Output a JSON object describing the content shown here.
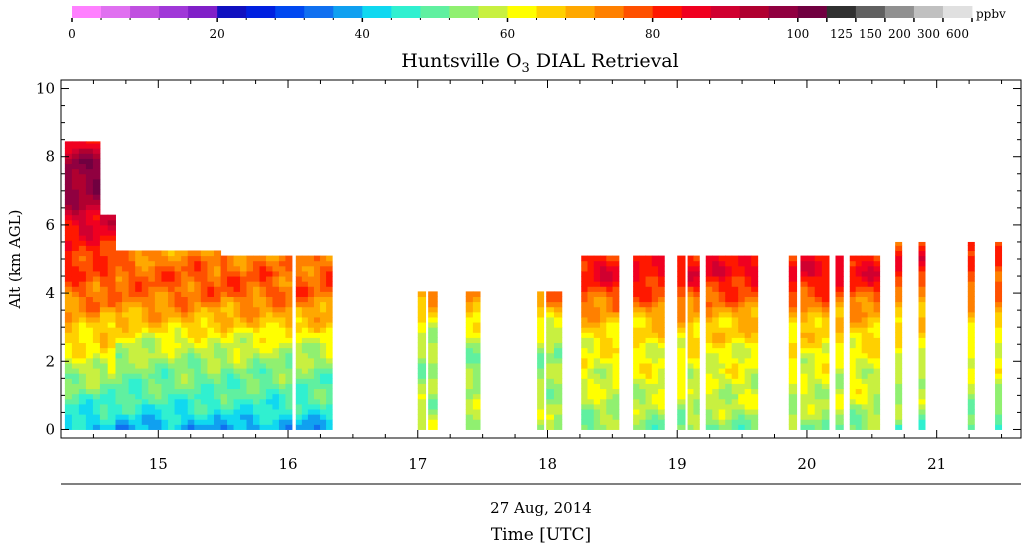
{
  "chart_data": {
    "type": "heatmap",
    "title": "Huntsville O",
    "title_sub": "3",
    "title_suffix": " DIAL Retrieval",
    "ylabel": "Alt (km AGL)",
    "xlabel": "Time [UTC]",
    "date_label": "27 Aug, 2014",
    "xlim": [
      14.25,
      21.65
    ],
    "ylim": [
      -0.25,
      10.25
    ],
    "x_ticks": [
      15,
      16,
      17,
      18,
      19,
      20,
      21
    ],
    "x_tick_labels": [
      "15",
      "16",
      "17",
      "18",
      "19",
      "20",
      "21"
    ],
    "y_ticks": [
      0,
      2,
      4,
      6,
      8,
      10
    ],
    "y_tick_labels": [
      "0",
      "2",
      "4",
      "6",
      "8",
      "10"
    ],
    "colorbar": {
      "unit": "ppbv",
      "colors": [
        "#ff80ff",
        "#e070f0",
        "#c050e0",
        "#a038d8",
        "#8020c8",
        "#1010c0",
        "#0020e0",
        "#0048f0",
        "#1070f0",
        "#10a0f0",
        "#10d8f0",
        "#30f0d0",
        "#60f0a0",
        "#90f070",
        "#c8f040",
        "#ffff00",
        "#ffd000",
        "#ffa800",
        "#ff8000",
        "#ff5000",
        "#ff1800",
        "#f00020",
        "#d00030",
        "#b00030",
        "#900040",
        "#700040",
        "#303030",
        "#606060",
        "#909090",
        "#c0c0c0",
        "#e0e0e0"
      ],
      "tick_labels": [
        "0",
        "20",
        "40",
        "60",
        "80",
        "100",
        "125",
        "150",
        "200",
        "300",
        "600"
      ]
    },
    "segments": [
      {
        "start": 14.28,
        "end": 14.55,
        "top": 8.45,
        "profile": "early"
      },
      {
        "start": 14.55,
        "end": 14.67,
        "top": 6.3,
        "profile": "early"
      },
      {
        "start": 14.67,
        "end": 15.48,
        "top": 5.25,
        "profile": "morning"
      },
      {
        "start": 15.48,
        "end": 16.03,
        "top": 5.1,
        "profile": "morning"
      },
      {
        "start": 16.06,
        "end": 16.34,
        "top": 5.1,
        "profile": "morning"
      },
      {
        "start": 17.0,
        "end": 17.06,
        "top": 4.05,
        "profile": "mid"
      },
      {
        "start": 17.08,
        "end": 17.15,
        "top": 4.05,
        "profile": "mid"
      },
      {
        "start": 17.37,
        "end": 17.48,
        "top": 4.05,
        "profile": "mid"
      },
      {
        "start": 17.92,
        "end": 17.97,
        "top": 4.05,
        "profile": "mid"
      },
      {
        "start": 17.99,
        "end": 18.11,
        "top": 4.05,
        "profile": "mid"
      },
      {
        "start": 18.26,
        "end": 18.55,
        "top": 5.1,
        "profile": "afternoon"
      },
      {
        "start": 18.66,
        "end": 18.9,
        "top": 5.1,
        "profile": "afternoon"
      },
      {
        "start": 19.0,
        "end": 19.06,
        "top": 5.1,
        "profile": "afternoon"
      },
      {
        "start": 19.08,
        "end": 19.17,
        "top": 5.1,
        "profile": "afternoon"
      },
      {
        "start": 19.22,
        "end": 19.62,
        "top": 5.1,
        "profile": "afternoon"
      },
      {
        "start": 19.86,
        "end": 19.92,
        "top": 5.1,
        "profile": "afternoon"
      },
      {
        "start": 19.95,
        "end": 20.17,
        "top": 5.1,
        "profile": "afternoon"
      },
      {
        "start": 20.22,
        "end": 20.28,
        "top": 5.1,
        "profile": "afternoon"
      },
      {
        "start": 20.33,
        "end": 20.56,
        "top": 5.1,
        "profile": "afternoon"
      },
      {
        "start": 20.68,
        "end": 20.73,
        "top": 5.5,
        "profile": "late"
      },
      {
        "start": 20.86,
        "end": 20.91,
        "top": 5.5,
        "profile": "late"
      },
      {
        "start": 21.24,
        "end": 21.29,
        "top": 5.5,
        "profile": "late"
      },
      {
        "start": 21.45,
        "end": 21.5,
        "top": 5.5,
        "profile": "late"
      }
    ],
    "profiles": {
      "early": [
        [
          0,
          40
        ],
        [
          0.6,
          46
        ],
        [
          1.5,
          55
        ],
        [
          2.3,
          62
        ],
        [
          3.0,
          67
        ],
        [
          3.8,
          75
        ],
        [
          5.0,
          80
        ],
        [
          6.2,
          88
        ],
        [
          7.2,
          100
        ],
        [
          8.0,
          95
        ],
        [
          8.45,
          85
        ]
      ],
      "morning": [
        [
          0,
          38
        ],
        [
          0.5,
          45
        ],
        [
          1.2,
          50
        ],
        [
          1.8,
          53
        ],
        [
          2.6,
          60
        ],
        [
          3.2,
          68
        ],
        [
          4.0,
          76
        ],
        [
          4.6,
          77
        ],
        [
          5.25,
          72
        ]
      ],
      "mid": [
        [
          0,
          58
        ],
        [
          1.0,
          56
        ],
        [
          2.0,
          54
        ],
        [
          3.0,
          60
        ],
        [
          3.6,
          68
        ],
        [
          4.05,
          76
        ]
      ],
      "afternoon": [
        [
          0,
          52
        ],
        [
          0.8,
          58
        ],
        [
          1.6,
          60
        ],
        [
          2.4,
          62
        ],
        [
          3.2,
          68
        ],
        [
          4.0,
          78
        ],
        [
          4.6,
          86
        ],
        [
          5.1,
          82
        ]
      ],
      "late": [
        [
          0,
          48
        ],
        [
          0.6,
          54
        ],
        [
          1.5,
          58
        ],
        [
          2.6,
          62
        ],
        [
          3.6,
          70
        ],
        [
          4.4,
          78
        ],
        [
          5.0,
          84
        ],
        [
          5.5,
          80
        ]
      ]
    }
  }
}
